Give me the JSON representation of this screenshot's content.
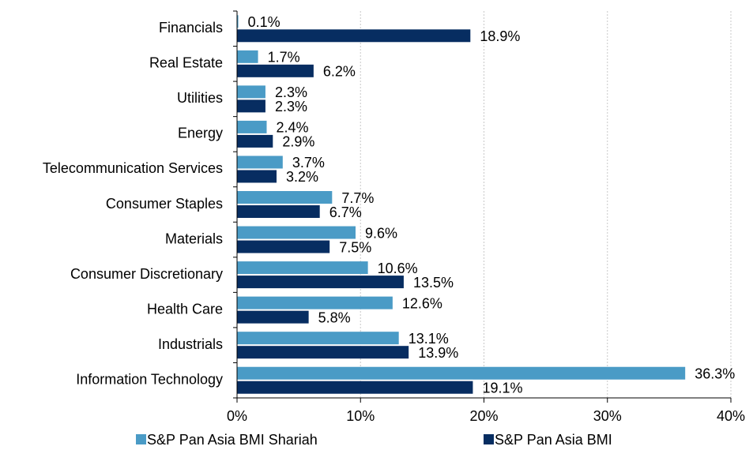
{
  "chart_data": {
    "type": "bar",
    "orientation": "horizontal",
    "categories": [
      "Financials",
      "Real Estate",
      "Utilities",
      "Energy",
      "Telecommunication Services",
      "Consumer Staples",
      "Materials",
      "Consumer Discretionary",
      "Health Care",
      "Industrials",
      "Information Technology"
    ],
    "series": [
      {
        "name": "S&P Pan Asia BMI Shariah",
        "color": "#4a9bc6",
        "values": [
          0.1,
          1.7,
          2.3,
          2.4,
          3.7,
          7.7,
          9.6,
          10.6,
          12.6,
          13.1,
          36.3
        ],
        "value_labels": [
          "0.1%",
          "1.7%",
          "2.3%",
          "2.4%",
          "3.7%",
          "7.7%",
          "9.6%",
          "10.6%",
          "12.6%",
          "13.1%",
          "36.3%"
        ]
      },
      {
        "name": "S&P Pan Asia BMI",
        "color": "#072d61",
        "values": [
          18.9,
          6.2,
          2.3,
          2.9,
          3.2,
          6.7,
          7.5,
          13.5,
          5.8,
          13.9,
          19.1
        ],
        "value_labels": [
          "18.9%",
          "6.2%",
          "2.3%",
          "2.9%",
          "3.2%",
          "6.7%",
          "7.5%",
          "13.5%",
          "5.8%",
          "13.9%",
          "19.1%"
        ]
      }
    ],
    "xlim": [
      0,
      40
    ],
    "xticks": [
      {
        "value": 0,
        "label": "0%"
      },
      {
        "value": 10,
        "label": "10%"
      },
      {
        "value": 20,
        "label": "20%"
      },
      {
        "value": 30,
        "label": "30%"
      },
      {
        "value": 40,
        "label": "40%"
      }
    ],
    "grid": true,
    "legend": "bottom"
  }
}
